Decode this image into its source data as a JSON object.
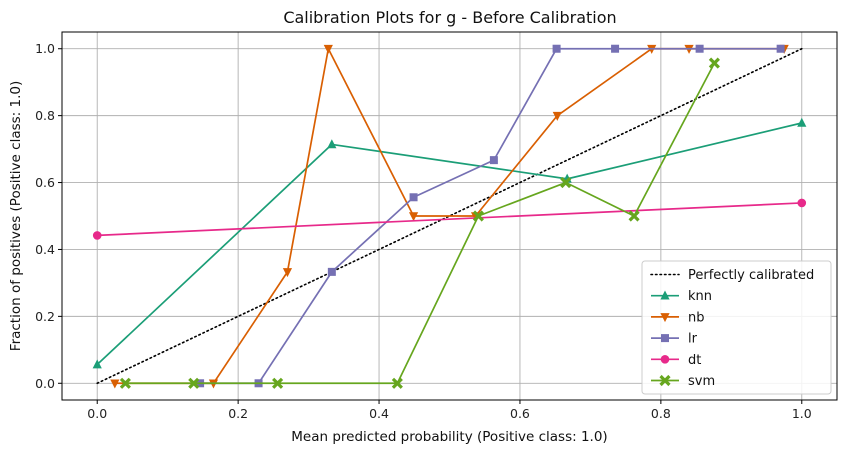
{
  "chart_data": {
    "type": "line",
    "title": "Calibration Plots for g - Before Calibration",
    "xlabel": "Mean predicted probability (Positive class: 1.0)",
    "ylabel": "Fraction of positives (Positive class: 1.0)",
    "xlim": [
      -0.05,
      1.05
    ],
    "ylim": [
      -0.05,
      1.05
    ],
    "xticks": [
      "0.0",
      "0.2",
      "0.4",
      "0.6",
      "0.8",
      "1.0"
    ],
    "yticks": [
      "0.0",
      "0.2",
      "0.4",
      "0.6",
      "0.8",
      "1.0"
    ],
    "grid": true,
    "legend_position": "lower-right",
    "reference": {
      "name": "Perfectly calibrated",
      "x": [
        0,
        1
      ],
      "y": [
        0,
        1
      ],
      "color": "#000000",
      "style": "dotted"
    },
    "series": [
      {
        "name": "knn",
        "color": "#1b9e77",
        "marker": "triangle-up",
        "x": [
          0.0,
          0.333,
          0.667,
          1.0
        ],
        "y": [
          0.056,
          0.714,
          0.611,
          0.778
        ]
      },
      {
        "name": "nb",
        "color": "#d95f02",
        "marker": "triangle-down",
        "x": [
          0.025,
          0.165,
          0.27,
          0.328,
          0.449,
          0.537,
          0.653,
          0.787,
          0.84,
          0.975
        ],
        "y": [
          0.0,
          0.0,
          0.333,
          1.0,
          0.5,
          0.5,
          0.8,
          1.0,
          1.0,
          1.0
        ]
      },
      {
        "name": "lr",
        "color": "#7570b3",
        "marker": "square",
        "x": [
          0.146,
          0.229,
          0.333,
          0.449,
          0.563,
          0.652,
          0.735,
          0.855,
          0.97
        ],
        "y": [
          0.0,
          0.0,
          0.333,
          0.556,
          0.667,
          1.0,
          1.0,
          1.0,
          1.0
        ]
      },
      {
        "name": "dt",
        "color": "#e7298a",
        "marker": "circle",
        "x": [
          0.0,
          1.0
        ],
        "y": [
          0.442,
          0.539
        ]
      },
      {
        "name": "svm",
        "color": "#66a61e",
        "marker": "x",
        "x": [
          0.04,
          0.137,
          0.256,
          0.426,
          0.541,
          0.665,
          0.762,
          0.876
        ],
        "y": [
          0.0,
          0.0,
          0.0,
          0.0,
          0.5,
          0.6,
          0.5,
          0.957
        ]
      }
    ]
  }
}
